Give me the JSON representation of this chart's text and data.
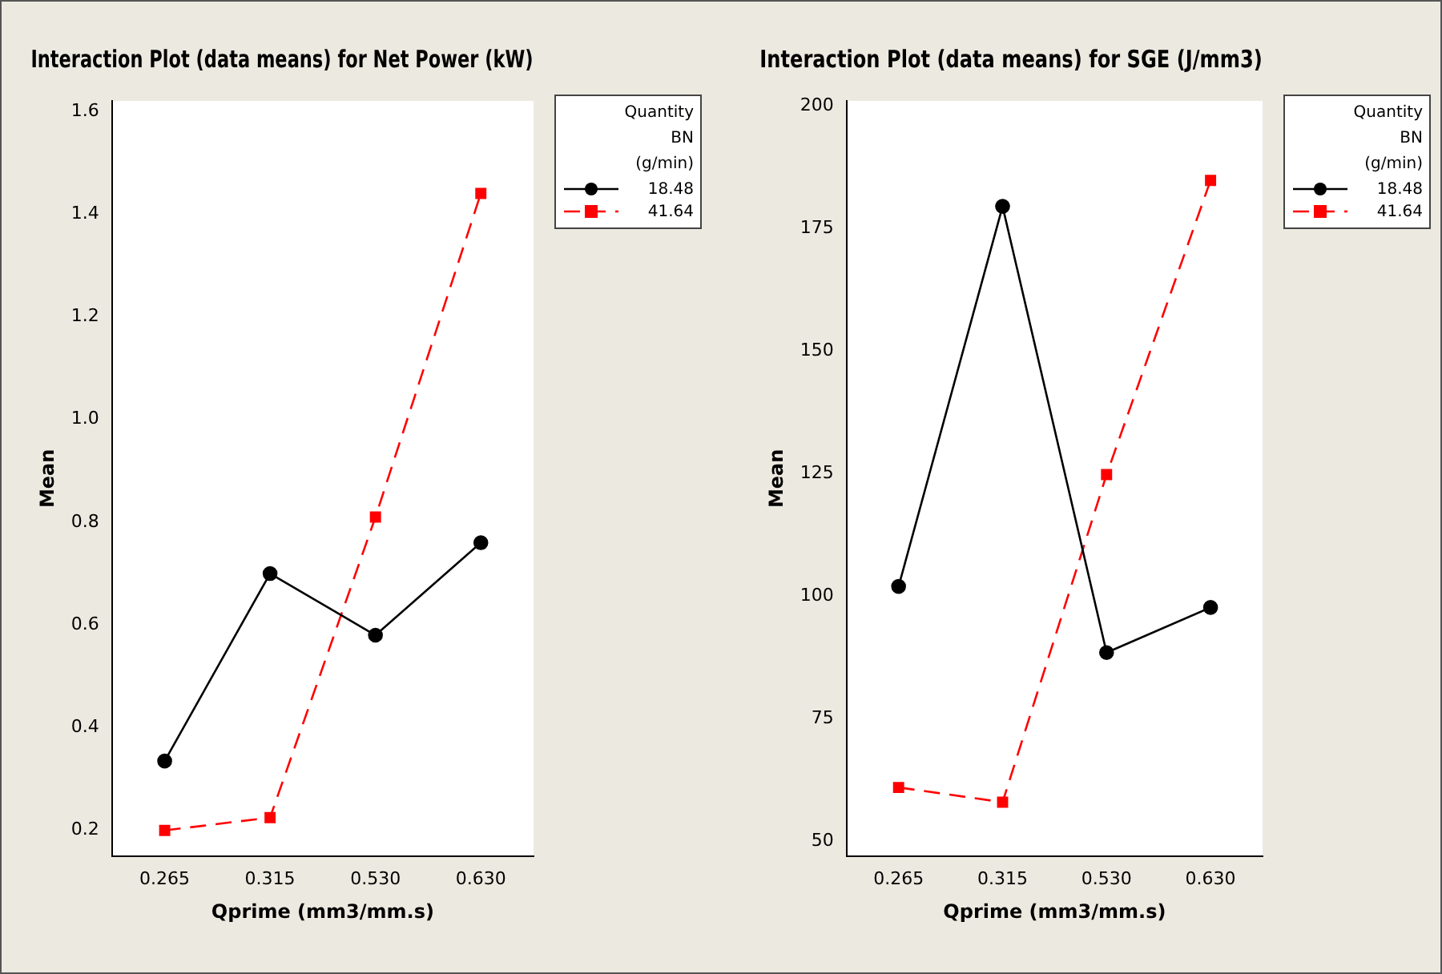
{
  "chart_data": [
    {
      "type": "line",
      "title": "Interaction Plot (data means) for Net Power (kW)",
      "xlabel": "Qprime (mm3/mm.s)",
      "ylabel": "Mean",
      "legend_title": "Quantity\nBN\n(g/min)",
      "legend": "right",
      "categories": [
        "0.265",
        "0.315",
        "0.530",
        "0.630"
      ],
      "ylim": [
        0.15,
        1.62
      ],
      "yticks": [
        {
          "value": 0.2,
          "label": "0.2"
        },
        {
          "value": 0.4,
          "label": "0.4"
        },
        {
          "value": 0.6,
          "label": "0.6"
        },
        {
          "value": 0.8,
          "label": "0.8"
        },
        {
          "value": 1.0,
          "label": "1.0"
        },
        {
          "value": 1.2,
          "label": "1.2"
        },
        {
          "value": 1.4,
          "label": "1.4"
        },
        {
          "value": 1.6,
          "label": "1.6"
        }
      ],
      "series": [
        {
          "name": "18.48",
          "color": "#000000",
          "marker": "circle",
          "line_style": "solid",
          "values": [
            0.335,
            0.7,
            0.58,
            0.76
          ]
        },
        {
          "name": "41.64",
          "color": "#ff0000",
          "marker": "square",
          "line_style": "dashed",
          "values": [
            0.2,
            0.225,
            0.81,
            1.44
          ]
        }
      ]
    },
    {
      "type": "line",
      "title": "Interaction Plot (data means) for SGE (J/mm3)",
      "xlabel": "Qprime (mm3/mm.s)",
      "ylabel": "Mean",
      "legend_title": "Quantity\nBN\n(g/min)",
      "legend": "right",
      "categories": [
        "0.265",
        "0.315",
        "0.530",
        "0.630"
      ],
      "ylim": [
        47,
        201
      ],
      "yticks": [
        50,
        75,
        100,
        125,
        150,
        175,
        200
      ],
      "series": [
        {
          "name": "18.48",
          "color": "#000000",
          "marker": "circle",
          "line_style": "solid",
          "values": [
            102,
            179.5,
            88.5,
            97.7
          ]
        },
        {
          "name": "41.64",
          "color": "#ff0000",
          "marker": "square",
          "line_style": "dashed",
          "values": [
            61,
            58,
            124.8,
            184.8
          ]
        }
      ]
    }
  ]
}
